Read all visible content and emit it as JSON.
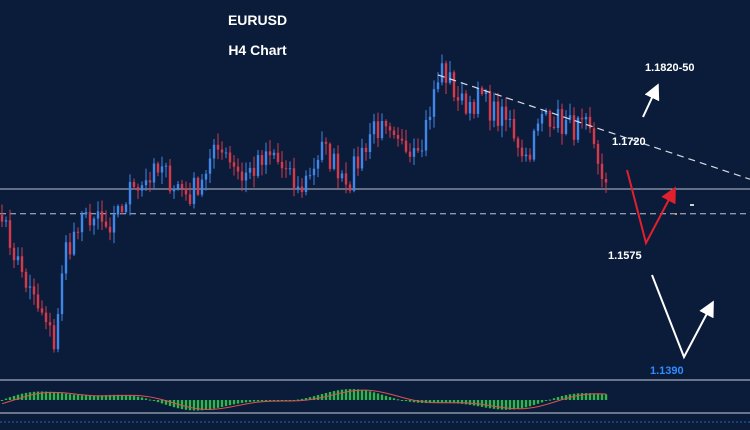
{
  "chart_data": {
    "type": "candlestick",
    "title": "EURUSD",
    "subtitle": "H4 Chart",
    "price_range": [
      1.134,
      1.192
    ],
    "candle_count": 152,
    "colors": {
      "background": "#0b1c3a",
      "bull": "#3f86e6",
      "bear": "#d63a4a",
      "text": "#ffffff",
      "target_low": "#2f8bff",
      "projection_red": "#e0202c",
      "projection_white": "#ffffff",
      "oscillator": "#2fb84a"
    },
    "price_path": [
      [
        0,
        1.158
      ],
      [
        7,
        1.147
      ],
      [
        13,
        1.1395
      ],
      [
        16,
        1.154
      ],
      [
        22,
        1.159
      ],
      [
        27,
        1.156
      ],
      [
        33,
        1.164
      ],
      [
        40,
        1.1655
      ],
      [
        47,
        1.162
      ],
      [
        55,
        1.17
      ],
      [
        60,
        1.165
      ],
      [
        68,
        1.168
      ],
      [
        74,
        1.1625
      ],
      [
        80,
        1.169
      ],
      [
        87,
        1.1645
      ],
      [
        93,
        1.173
      ],
      [
        99,
        1.169
      ],
      [
        105,
        1.171
      ],
      [
        110,
        1.1815
      ],
      [
        115,
        1.176
      ],
      [
        120,
        1.177
      ],
      [
        124,
        1.174
      ],
      [
        127,
        1.173
      ],
      [
        131,
        1.168
      ],
      [
        136,
        1.175
      ],
      [
        140,
        1.173
      ],
      [
        146,
        1.172
      ],
      [
        151,
        1.164
      ]
    ],
    "levels": [
      {
        "price": 1.163,
        "style": "solid"
      },
      {
        "price": 1.1592,
        "style": "dashed"
      }
    ],
    "trendline": {
      "start_candle": 109,
      "start_price": 1.1805,
      "end_price": 1.1645
    },
    "annotations": [
      {
        "text": "1.1820-50",
        "price": 1.1805
      },
      {
        "text": "1.1720",
        "price": 1.1713
      },
      {
        "text": "1.1575",
        "price": 1.1575
      },
      {
        "text": "1.1390",
        "price": 1.139
      }
    ]
  }
}
